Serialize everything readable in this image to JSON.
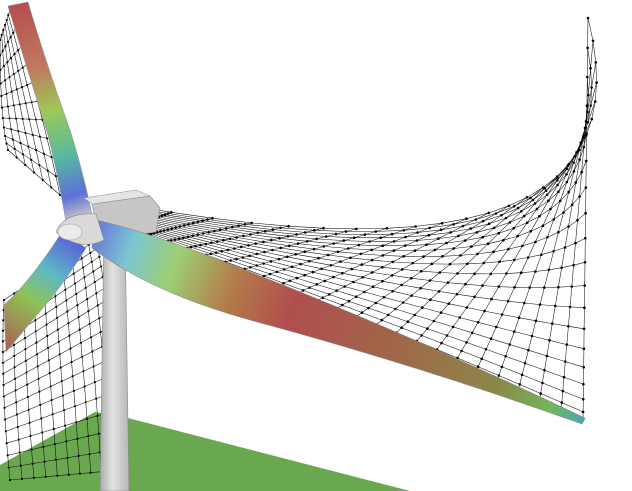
{
  "scene": {
    "kind": "wind-turbine-simulation-render",
    "background_color": "#ffffff",
    "ground_color": "#6aa84f",
    "tower_color": "#c8c8c8",
    "hub_color": "#d9d9d9",
    "mesh_color": "#111111",
    "blade_colormap": [
      "#a85050",
      "#c87878",
      "#8fbf58",
      "#58c0a8",
      "#5c70d8",
      "#60a8d0"
    ],
    "blade_count": 3
  }
}
